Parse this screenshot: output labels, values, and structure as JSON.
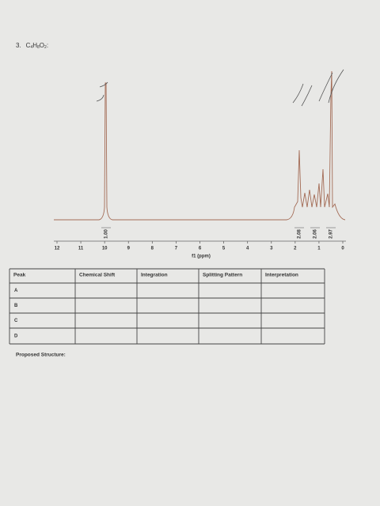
{
  "problem": {
    "number": "3.",
    "formula": [
      {
        "element": "C",
        "count": "4"
      },
      {
        "element": "H",
        "count": "8"
      },
      {
        "element": "O",
        "count": "2"
      }
    ],
    "suffix": ":"
  },
  "spectrum": {
    "xticks": [
      12,
      11,
      10,
      9,
      8,
      7,
      6,
      5,
      4,
      3,
      2,
      1,
      0
    ],
    "xlim": [
      12,
      0
    ],
    "axis_label": "f1 (ppm)",
    "integrations": [
      "1.00",
      "2.08",
      "2.06",
      "2.97"
    ]
  },
  "table": {
    "headers": [
      "Peak",
      "Chemical Shift",
      "Integration",
      "Splitting Pattern",
      "Interpretation"
    ],
    "rows": [
      [
        "A",
        "",
        "",
        "",
        ""
      ],
      [
        "B",
        "",
        "",
        "",
        ""
      ],
      [
        "C",
        "",
        "",
        "",
        ""
      ],
      [
        "D",
        "",
        "",
        "",
        ""
      ]
    ]
  },
  "footer": {
    "label": "Proposed Structure:"
  }
}
